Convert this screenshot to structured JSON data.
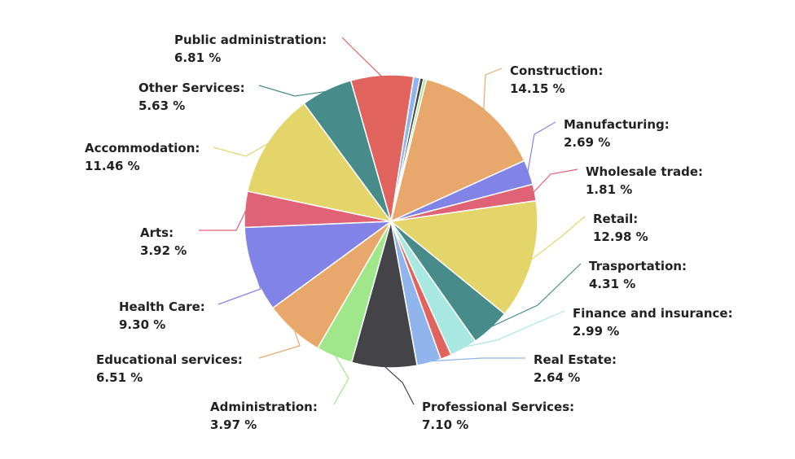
{
  "chart_data": {
    "type": "pie",
    "title": "",
    "slices": [
      {
        "name": "Construction",
        "value": 14.15,
        "value_label": "14.15 %",
        "color": "#E9A86B"
      },
      {
        "name": "Manufacturing",
        "value": 2.69,
        "value_label": "2.69 %",
        "color": "#8183E6"
      },
      {
        "name": "Wholesale trade",
        "value": 1.81,
        "value_label": "1.81 %",
        "color": "#E06277"
      },
      {
        "name": "Retail",
        "value": 12.98,
        "value_label": "12.98 %",
        "color": "#E3D56A"
      },
      {
        "name": "Trasportation",
        "value": 4.31,
        "value_label": "4.31 %",
        "color": "#478C8A"
      },
      {
        "name": "Finance and insurance",
        "value": 2.99,
        "value_label": "2.99 %",
        "color": "#A8E8E1"
      },
      {
        "name": "",
        "value": 1.2,
        "value_label": "",
        "color": "#E0635E"
      },
      {
        "name": "Real Estate",
        "value": 2.64,
        "value_label": "2.64 %",
        "color": "#90B4EC"
      },
      {
        "name": "Professional Services",
        "value": 7.1,
        "value_label": "7.10 %",
        "color": "#434348"
      },
      {
        "name": "Administration",
        "value": 3.97,
        "value_label": "3.97 %",
        "color": "#A0E78B"
      },
      {
        "name": "Educational services",
        "value": 6.51,
        "value_label": "6.51 %",
        "color": "#E9A86B"
      },
      {
        "name": "Health Care",
        "value": 9.3,
        "value_label": "9.30 %",
        "color": "#8183E6"
      },
      {
        "name": "Arts",
        "value": 3.92,
        "value_label": "3.92 %",
        "color": "#E06277"
      },
      {
        "name": "Accommodation",
        "value": 11.46,
        "value_label": "11.46 %",
        "color": "#E3D56A"
      },
      {
        "name": "Other Services",
        "value": 5.63,
        "value_label": "5.63 %",
        "color": "#478C8A"
      },
      {
        "name": "Public administration",
        "value": 6.81,
        "value_label": "6.81 %",
        "color": "#E0635E"
      },
      {
        "name": "",
        "value": 0.7,
        "value_label": "",
        "color": "#90B4EC"
      },
      {
        "name": "",
        "value": 0.4,
        "value_label": "",
        "color": "#434348"
      },
      {
        "name": "",
        "value": 0.3,
        "value_label": "",
        "color": "#A0E78B"
      }
    ]
  }
}
